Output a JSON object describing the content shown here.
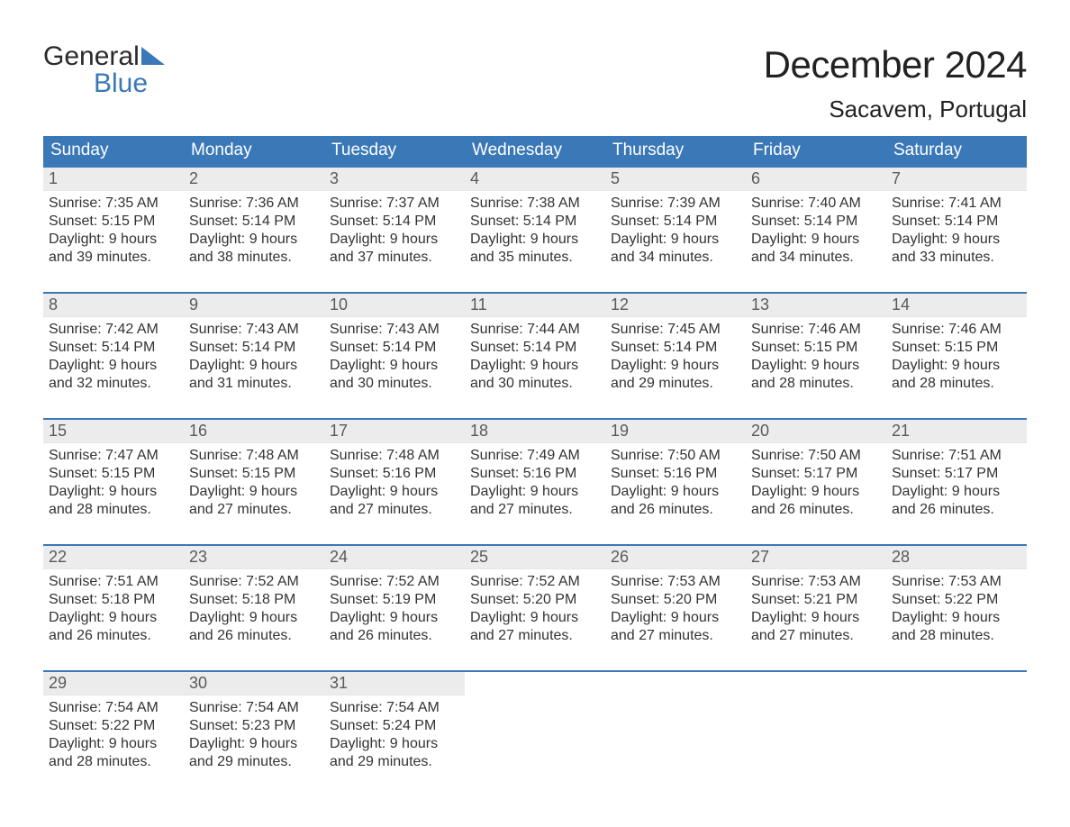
{
  "logo": {
    "line1": "General",
    "line2": "Blue",
    "triangle_color": "#3a78b8"
  },
  "title": "December 2024",
  "location": "Sacavem, Portugal",
  "colors": {
    "header_bg": "#3a78b8",
    "header_text": "#ffffff",
    "daynum_bg": "#ececec",
    "daynum_text": "#5a5a5a",
    "body_text": "#333333",
    "week_border": "#3a78b8",
    "background": "#ffffff"
  },
  "typography": {
    "month_title_size": 42,
    "location_size": 26,
    "weekday_size": 19,
    "daynum_size": 18,
    "body_size": 16,
    "logo_size": 30
  },
  "weekdays": [
    "Sunday",
    "Monday",
    "Tuesday",
    "Wednesday",
    "Thursday",
    "Friday",
    "Saturday"
  ],
  "weeks": [
    [
      {
        "day": "1",
        "sunrise": "Sunrise: 7:35 AM",
        "sunset": "Sunset: 5:15 PM",
        "daylight1": "Daylight: 9 hours",
        "daylight2": "and 39 minutes."
      },
      {
        "day": "2",
        "sunrise": "Sunrise: 7:36 AM",
        "sunset": "Sunset: 5:14 PM",
        "daylight1": "Daylight: 9 hours",
        "daylight2": "and 38 minutes."
      },
      {
        "day": "3",
        "sunrise": "Sunrise: 7:37 AM",
        "sunset": "Sunset: 5:14 PM",
        "daylight1": "Daylight: 9 hours",
        "daylight2": "and 37 minutes."
      },
      {
        "day": "4",
        "sunrise": "Sunrise: 7:38 AM",
        "sunset": "Sunset: 5:14 PM",
        "daylight1": "Daylight: 9 hours",
        "daylight2": "and 35 minutes."
      },
      {
        "day": "5",
        "sunrise": "Sunrise: 7:39 AM",
        "sunset": "Sunset: 5:14 PM",
        "daylight1": "Daylight: 9 hours",
        "daylight2": "and 34 minutes."
      },
      {
        "day": "6",
        "sunrise": "Sunrise: 7:40 AM",
        "sunset": "Sunset: 5:14 PM",
        "daylight1": "Daylight: 9 hours",
        "daylight2": "and 34 minutes."
      },
      {
        "day": "7",
        "sunrise": "Sunrise: 7:41 AM",
        "sunset": "Sunset: 5:14 PM",
        "daylight1": "Daylight: 9 hours",
        "daylight2": "and 33 minutes."
      }
    ],
    [
      {
        "day": "8",
        "sunrise": "Sunrise: 7:42 AM",
        "sunset": "Sunset: 5:14 PM",
        "daylight1": "Daylight: 9 hours",
        "daylight2": "and 32 minutes."
      },
      {
        "day": "9",
        "sunrise": "Sunrise: 7:43 AM",
        "sunset": "Sunset: 5:14 PM",
        "daylight1": "Daylight: 9 hours",
        "daylight2": "and 31 minutes."
      },
      {
        "day": "10",
        "sunrise": "Sunrise: 7:43 AM",
        "sunset": "Sunset: 5:14 PM",
        "daylight1": "Daylight: 9 hours",
        "daylight2": "and 30 minutes."
      },
      {
        "day": "11",
        "sunrise": "Sunrise: 7:44 AM",
        "sunset": "Sunset: 5:14 PM",
        "daylight1": "Daylight: 9 hours",
        "daylight2": "and 30 minutes."
      },
      {
        "day": "12",
        "sunrise": "Sunrise: 7:45 AM",
        "sunset": "Sunset: 5:14 PM",
        "daylight1": "Daylight: 9 hours",
        "daylight2": "and 29 minutes."
      },
      {
        "day": "13",
        "sunrise": "Sunrise: 7:46 AM",
        "sunset": "Sunset: 5:15 PM",
        "daylight1": "Daylight: 9 hours",
        "daylight2": "and 28 minutes."
      },
      {
        "day": "14",
        "sunrise": "Sunrise: 7:46 AM",
        "sunset": "Sunset: 5:15 PM",
        "daylight1": "Daylight: 9 hours",
        "daylight2": "and 28 minutes."
      }
    ],
    [
      {
        "day": "15",
        "sunrise": "Sunrise: 7:47 AM",
        "sunset": "Sunset: 5:15 PM",
        "daylight1": "Daylight: 9 hours",
        "daylight2": "and 28 minutes."
      },
      {
        "day": "16",
        "sunrise": "Sunrise: 7:48 AM",
        "sunset": "Sunset: 5:15 PM",
        "daylight1": "Daylight: 9 hours",
        "daylight2": "and 27 minutes."
      },
      {
        "day": "17",
        "sunrise": "Sunrise: 7:48 AM",
        "sunset": "Sunset: 5:16 PM",
        "daylight1": "Daylight: 9 hours",
        "daylight2": "and 27 minutes."
      },
      {
        "day": "18",
        "sunrise": "Sunrise: 7:49 AM",
        "sunset": "Sunset: 5:16 PM",
        "daylight1": "Daylight: 9 hours",
        "daylight2": "and 27 minutes."
      },
      {
        "day": "19",
        "sunrise": "Sunrise: 7:50 AM",
        "sunset": "Sunset: 5:16 PM",
        "daylight1": "Daylight: 9 hours",
        "daylight2": "and 26 minutes."
      },
      {
        "day": "20",
        "sunrise": "Sunrise: 7:50 AM",
        "sunset": "Sunset: 5:17 PM",
        "daylight1": "Daylight: 9 hours",
        "daylight2": "and 26 minutes."
      },
      {
        "day": "21",
        "sunrise": "Sunrise: 7:51 AM",
        "sunset": "Sunset: 5:17 PM",
        "daylight1": "Daylight: 9 hours",
        "daylight2": "and 26 minutes."
      }
    ],
    [
      {
        "day": "22",
        "sunrise": "Sunrise: 7:51 AM",
        "sunset": "Sunset: 5:18 PM",
        "daylight1": "Daylight: 9 hours",
        "daylight2": "and 26 minutes."
      },
      {
        "day": "23",
        "sunrise": "Sunrise: 7:52 AM",
        "sunset": "Sunset: 5:18 PM",
        "daylight1": "Daylight: 9 hours",
        "daylight2": "and 26 minutes."
      },
      {
        "day": "24",
        "sunrise": "Sunrise: 7:52 AM",
        "sunset": "Sunset: 5:19 PM",
        "daylight1": "Daylight: 9 hours",
        "daylight2": "and 26 minutes."
      },
      {
        "day": "25",
        "sunrise": "Sunrise: 7:52 AM",
        "sunset": "Sunset: 5:20 PM",
        "daylight1": "Daylight: 9 hours",
        "daylight2": "and 27 minutes."
      },
      {
        "day": "26",
        "sunrise": "Sunrise: 7:53 AM",
        "sunset": "Sunset: 5:20 PM",
        "daylight1": "Daylight: 9 hours",
        "daylight2": "and 27 minutes."
      },
      {
        "day": "27",
        "sunrise": "Sunrise: 7:53 AM",
        "sunset": "Sunset: 5:21 PM",
        "daylight1": "Daylight: 9 hours",
        "daylight2": "and 27 minutes."
      },
      {
        "day": "28",
        "sunrise": "Sunrise: 7:53 AM",
        "sunset": "Sunset: 5:22 PM",
        "daylight1": "Daylight: 9 hours",
        "daylight2": "and 28 minutes."
      }
    ],
    [
      {
        "day": "29",
        "sunrise": "Sunrise: 7:54 AM",
        "sunset": "Sunset: 5:22 PM",
        "daylight1": "Daylight: 9 hours",
        "daylight2": "and 28 minutes."
      },
      {
        "day": "30",
        "sunrise": "Sunrise: 7:54 AM",
        "sunset": "Sunset: 5:23 PM",
        "daylight1": "Daylight: 9 hours",
        "daylight2": "and 29 minutes."
      },
      {
        "day": "31",
        "sunrise": "Sunrise: 7:54 AM",
        "sunset": "Sunset: 5:24 PM",
        "daylight1": "Daylight: 9 hours",
        "daylight2": "and 29 minutes."
      },
      {
        "empty": true
      },
      {
        "empty": true
      },
      {
        "empty": true
      },
      {
        "empty": true
      }
    ]
  ]
}
